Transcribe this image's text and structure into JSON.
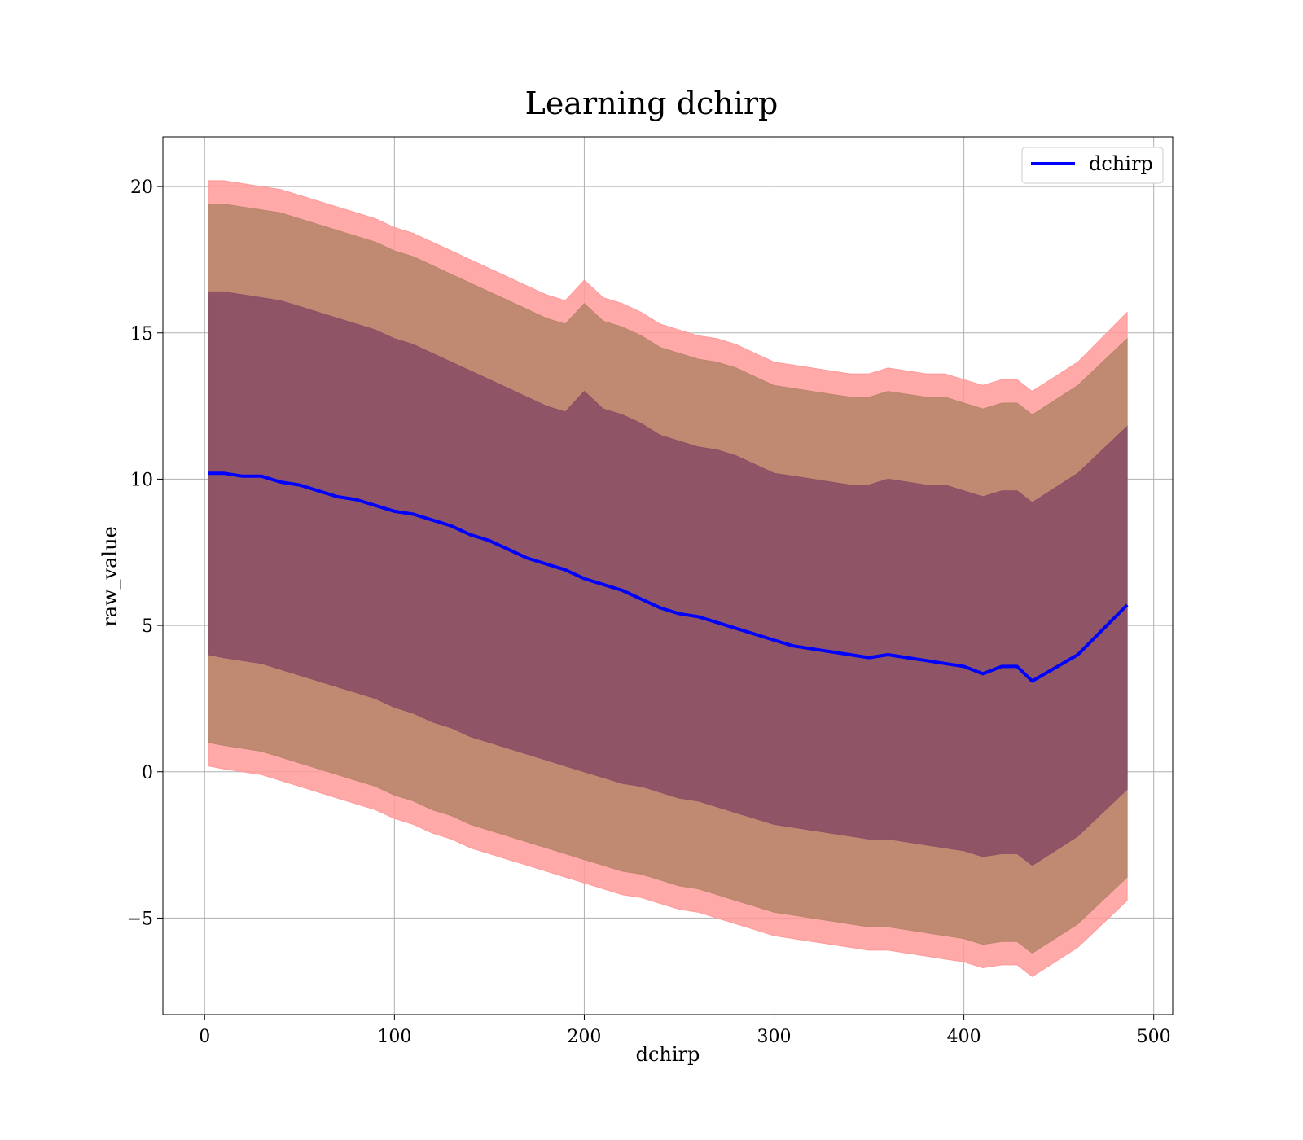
{
  "chart_data": {
    "type": "line",
    "title": "Learning dchirp",
    "xlabel": "dchirp",
    "ylabel": "raw_value",
    "xlim": [
      -22,
      510
    ],
    "ylim": [
      -8.3,
      21.7
    ],
    "xticks": [
      0,
      100,
      200,
      300,
      400,
      500
    ],
    "yticks": [
      -5,
      0,
      5,
      10,
      15,
      20
    ],
    "xtick_labels": [
      "0",
      "100",
      "200",
      "300",
      "400",
      "500"
    ],
    "ytick_labels": [
      "−5",
      "0",
      "5",
      "10",
      "15",
      "20"
    ],
    "grid": true,
    "legend": {
      "position": "top-right",
      "entries": [
        "dchirp"
      ]
    },
    "colors": {
      "line": "#0000ff",
      "band_outer": "#ff9a9a",
      "band_middle": "#b8866a",
      "band_inner": "#8a4f66"
    },
    "series": [
      {
        "name": "dchirp",
        "x": [
          2,
          10,
          20,
          30,
          40,
          50,
          60,
          70,
          80,
          90,
          100,
          110,
          120,
          130,
          140,
          150,
          160,
          170,
          180,
          190,
          200,
          210,
          220,
          230,
          240,
          250,
          260,
          270,
          280,
          290,
          300,
          310,
          320,
          330,
          340,
          350,
          360,
          370,
          380,
          390,
          400,
          410,
          420,
          428,
          436,
          460,
          486
        ],
        "values": [
          10.2,
          10.2,
          10.1,
          10.1,
          9.9,
          9.8,
          9.6,
          9.4,
          9.3,
          9.1,
          8.9,
          8.8,
          8.6,
          8.4,
          8.1,
          7.9,
          7.6,
          7.3,
          7.1,
          6.9,
          6.6,
          6.4,
          6.2,
          5.9,
          5.6,
          5.4,
          5.3,
          5.1,
          4.9,
          4.7,
          4.5,
          4.3,
          4.2,
          4.1,
          4.0,
          3.9,
          4.0,
          3.9,
          3.8,
          3.7,
          3.6,
          3.35,
          3.6,
          3.6,
          3.1,
          4.0,
          5.7
        ]
      }
    ],
    "bands": [
      {
        "lower": [
          0.2,
          0.1,
          0.0,
          -0.1,
          -0.3,
          -0.5,
          -0.7,
          -0.9,
          -1.1,
          -1.3,
          -1.6,
          -1.8,
          -2.1,
          -2.3,
          -2.6,
          -2.8,
          -3.0,
          -3.2,
          -3.4,
          -3.6,
          -3.8,
          -4.0,
          -4.2,
          -4.3,
          -4.5,
          -4.7,
          -4.8,
          -5.0,
          -5.2,
          -5.4,
          -5.6,
          -5.7,
          -5.8,
          -5.9,
          -6.0,
          -6.1,
          -6.1,
          -6.2,
          -6.3,
          -6.4,
          -6.5,
          -6.7,
          -6.6,
          -6.6,
          -7.0,
          -6.0,
          -4.4
        ],
        "upper": [
          20.2,
          20.2,
          20.1,
          20.0,
          19.9,
          19.7,
          19.5,
          19.3,
          19.1,
          18.9,
          18.6,
          18.4,
          18.1,
          17.8,
          17.5,
          17.2,
          16.9,
          16.6,
          16.3,
          16.1,
          16.8,
          16.2,
          16.0,
          15.7,
          15.3,
          15.1,
          14.9,
          14.8,
          14.6,
          14.3,
          14.0,
          13.9,
          13.8,
          13.7,
          13.6,
          13.6,
          13.8,
          13.7,
          13.6,
          13.6,
          13.4,
          13.2,
          13.4,
          13.4,
          13.0,
          14.0,
          15.7
        ]
      },
      {
        "lower": [
          1.0,
          0.9,
          0.8,
          0.7,
          0.5,
          0.3,
          0.1,
          -0.1,
          -0.3,
          -0.5,
          -0.8,
          -1.0,
          -1.3,
          -1.5,
          -1.8,
          -2.0,
          -2.2,
          -2.4,
          -2.6,
          -2.8,
          -3.0,
          -3.2,
          -3.4,
          -3.5,
          -3.7,
          -3.9,
          -4.0,
          -4.2,
          -4.4,
          -4.6,
          -4.8,
          -4.9,
          -5.0,
          -5.1,
          -5.2,
          -5.3,
          -5.3,
          -5.4,
          -5.5,
          -5.6,
          -5.7,
          -5.9,
          -5.8,
          -5.8,
          -6.2,
          -5.2,
          -3.6
        ],
        "upper": [
          19.4,
          19.4,
          19.3,
          19.2,
          19.1,
          18.9,
          18.7,
          18.5,
          18.3,
          18.1,
          17.8,
          17.6,
          17.3,
          17.0,
          16.7,
          16.4,
          16.1,
          15.8,
          15.5,
          15.3,
          16.0,
          15.4,
          15.2,
          14.9,
          14.5,
          14.3,
          14.1,
          14.0,
          13.8,
          13.5,
          13.2,
          13.1,
          13.0,
          12.9,
          12.8,
          12.8,
          13.0,
          12.9,
          12.8,
          12.8,
          12.6,
          12.4,
          12.6,
          12.6,
          12.2,
          13.2,
          14.8
        ]
      },
      {
        "lower": [
          4.0,
          3.9,
          3.8,
          3.7,
          3.5,
          3.3,
          3.1,
          2.9,
          2.7,
          2.5,
          2.2,
          2.0,
          1.7,
          1.5,
          1.2,
          1.0,
          0.8,
          0.6,
          0.4,
          0.2,
          0.0,
          -0.2,
          -0.4,
          -0.5,
          -0.7,
          -0.9,
          -1.0,
          -1.2,
          -1.4,
          -1.6,
          -1.8,
          -1.9,
          -2.0,
          -2.1,
          -2.2,
          -2.3,
          -2.3,
          -2.4,
          -2.5,
          -2.6,
          -2.7,
          -2.9,
          -2.8,
          -2.8,
          -3.2,
          -2.2,
          -0.6
        ],
        "upper": [
          16.4,
          16.4,
          16.3,
          16.2,
          16.1,
          15.9,
          15.7,
          15.5,
          15.3,
          15.1,
          14.8,
          14.6,
          14.3,
          14.0,
          13.7,
          13.4,
          13.1,
          12.8,
          12.5,
          12.3,
          13.0,
          12.4,
          12.2,
          11.9,
          11.5,
          11.3,
          11.1,
          11.0,
          10.8,
          10.5,
          10.2,
          10.1,
          10.0,
          9.9,
          9.8,
          9.8,
          10.0,
          9.9,
          9.8,
          9.8,
          9.6,
          9.4,
          9.6,
          9.6,
          9.2,
          10.2,
          11.8
        ]
      }
    ]
  }
}
